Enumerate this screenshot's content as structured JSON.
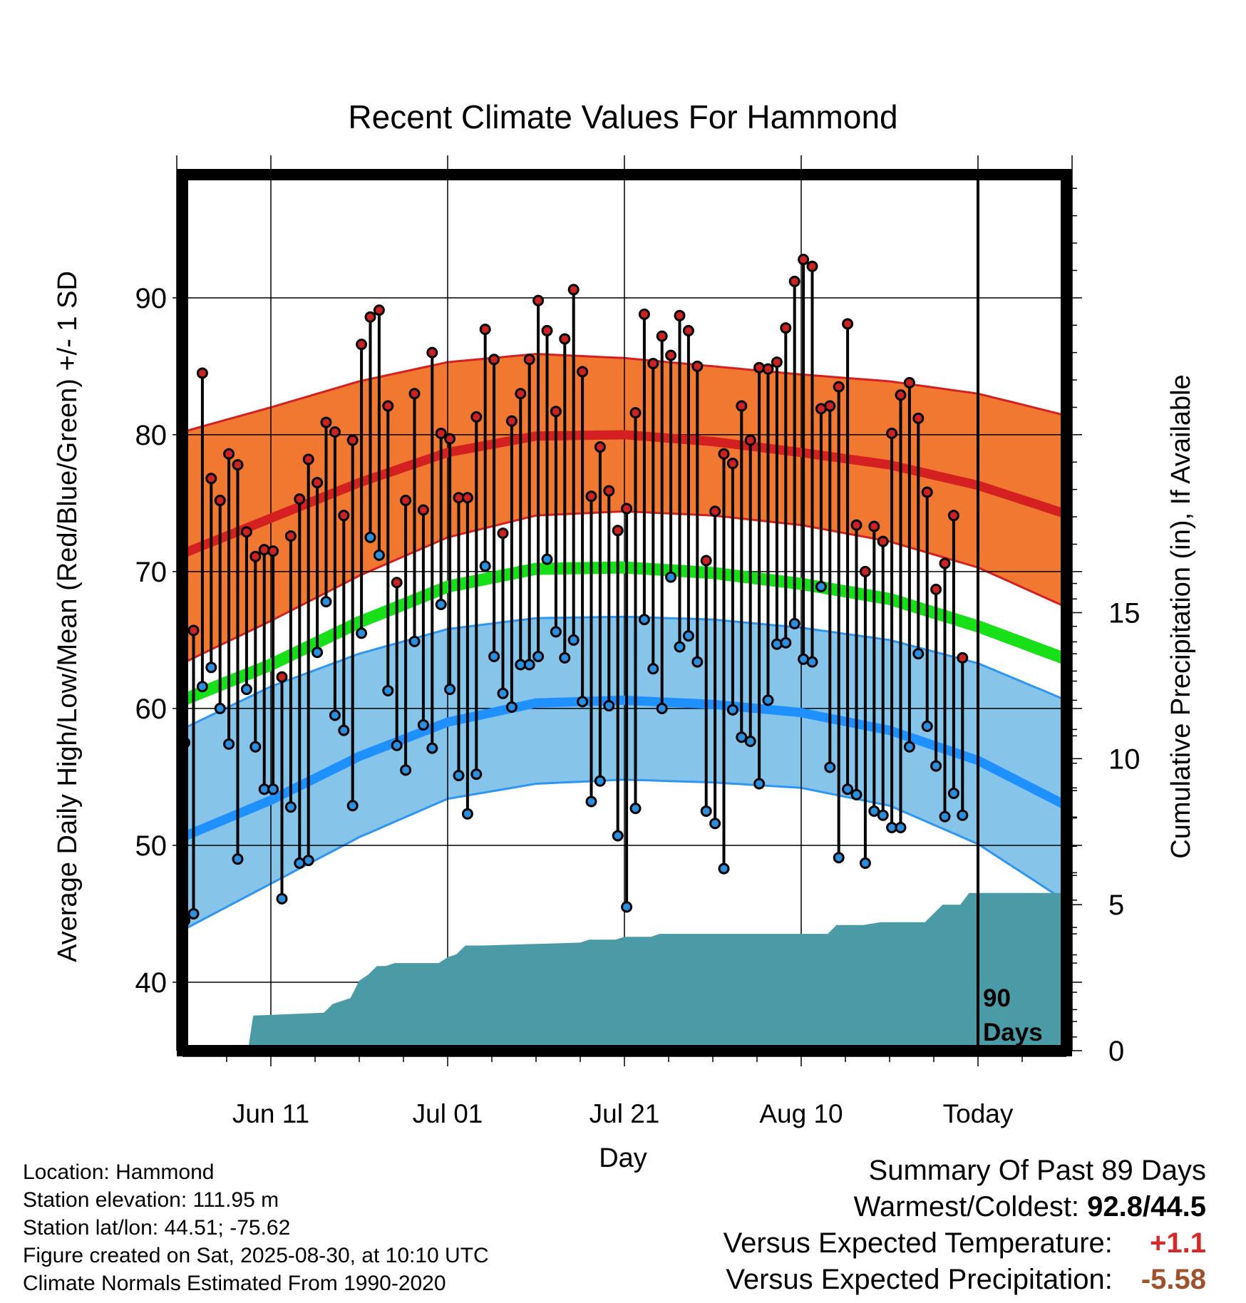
{
  "colors": {
    "high_band": "#F07830",
    "high_line": "#D42020",
    "low_band": "#86C4EA",
    "low_line": "#1E90FF",
    "low_edge": "#2E96F0",
    "mean_line": "#18E018",
    "precip": "#4A9BA6",
    "high_dot": "#CC2222",
    "low_dot": "#2B8FE0",
    "warm_value": "#D42A2A",
    "precip_value": "#A0522D"
  },
  "chart_data": {
    "type": "line",
    "title": "Recent Climate Values For Hammond",
    "xlabel": "Day",
    "ylabel": "Average Daily High/Low/Mean (Red/Blue/Green) +/- 1 SD",
    "y2label": "Cumulative Precipitation (in), If Available",
    "ylim": [
      35,
      99
    ],
    "y2lim": [
      0,
      30
    ],
    "y_ticks": [
      40,
      50,
      60,
      70,
      80,
      90
    ],
    "y2_ticks": [
      0,
      5,
      10,
      15
    ],
    "x_ticks": [
      {
        "day": 10,
        "label": "Jun 11"
      },
      {
        "day": 30,
        "label": "Jul 01"
      },
      {
        "day": 50,
        "label": "Jul 21"
      },
      {
        "day": 70,
        "label": "Aug 10"
      },
      {
        "day": 90,
        "label": "Today"
      }
    ],
    "x_range_days": [
      0,
      100
    ],
    "today_marker_label": "90 Days",
    "grid": true,
    "normals": {
      "days": [
        0,
        10,
        20,
        30,
        40,
        50,
        60,
        70,
        80,
        90,
        100
      ],
      "high_mean": [
        71.3,
        73.9,
        76.5,
        78.7,
        79.9,
        80.0,
        79.5,
        78.7,
        77.8,
        76.3,
        74.2
      ],
      "high_upper": [
        80.2,
        82.0,
        83.9,
        85.3,
        85.9,
        85.6,
        85.0,
        84.4,
        83.9,
        83.0,
        81.4
      ],
      "high_lower": [
        63.3,
        66.4,
        69.7,
        72.5,
        74.1,
        74.4,
        74.1,
        73.4,
        72.2,
        70.3,
        67.4
      ],
      "low_mean": [
        50.6,
        53.3,
        56.5,
        59.0,
        60.4,
        60.6,
        60.3,
        59.7,
        58.4,
        56.2,
        52.9
      ],
      "low_upper": [
        58.5,
        61.6,
        64.0,
        65.8,
        66.6,
        66.7,
        66.5,
        65.9,
        65.0,
        63.3,
        60.6
      ],
      "low_lower": [
        43.8,
        47.2,
        50.6,
        53.4,
        54.5,
        54.8,
        54.6,
        54.2,
        52.9,
        50.1,
        45.9
      ],
      "mean": [
        60.6,
        63.2,
        66.3,
        68.9,
        70.2,
        70.3,
        69.9,
        69.1,
        68.0,
        66.0,
        63.6
      ]
    },
    "series": [
      {
        "name": "High",
        "values": [
          57.5,
          65.7,
          84.5,
          76.8,
          75.2,
          78.6,
          77.8,
          72.9,
          71.1,
          71.6,
          71.5,
          62.3,
          72.6,
          75.3,
          78.2,
          76.5,
          80.9,
          80.2,
          74.1,
          79.6,
          86.6,
          88.6,
          89.1,
          82.1,
          69.2,
          75.2,
          83.0,
          74.5,
          86.0,
          80.1,
          79.7,
          75.4,
          75.4,
          81.3,
          87.7,
          85.5,
          72.8,
          81.0,
          83.0,
          85.5,
          89.8,
          87.6,
          81.7,
          87.0,
          90.6,
          84.6,
          75.5,
          79.1,
          75.9,
          73.0,
          74.6,
          81.6,
          88.8,
          85.2,
          87.2,
          85.8,
          88.7,
          87.6,
          85.0,
          70.8,
          74.4,
          78.6,
          77.9,
          82.1,
          79.6,
          84.9,
          84.8,
          85.3,
          87.8,
          91.2,
          92.8,
          92.3,
          81.9,
          82.1,
          83.5,
          88.1,
          73.4,
          70.0,
          73.3,
          72.2,
          80.1,
          82.9,
          83.8,
          81.2,
          75.8,
          68.7,
          70.6,
          74.1,
          63.7
        ]
      },
      {
        "name": "Low",
        "values": [
          44.5,
          45.0,
          61.6,
          63.0,
          60.0,
          57.4,
          49.0,
          61.4,
          57.2,
          54.1,
          54.1,
          46.1,
          52.8,
          48.7,
          48.9,
          64.1,
          67.8,
          59.5,
          58.4,
          52.9,
          65.5,
          72.5,
          71.2,
          61.3,
          57.3,
          55.5,
          64.9,
          58.8,
          57.1,
          67.6,
          61.4,
          55.1,
          52.3,
          55.2,
          70.4,
          63.8,
          61.1,
          60.1,
          63.2,
          63.2,
          63.8,
          70.9,
          65.6,
          63.7,
          65.0,
          60.5,
          53.2,
          54.7,
          60.2,
          50.7,
          45.5,
          52.7,
          66.5,
          62.9,
          60.0,
          69.6,
          64.5,
          65.3,
          63.4,
          52.5,
          51.6,
          48.3,
          59.9,
          57.9,
          57.6,
          54.5,
          60.6,
          64.7,
          64.8,
          66.2,
          63.6,
          63.4,
          68.9,
          55.7,
          49.1,
          54.1,
          53.7,
          48.7,
          52.5,
          52.2,
          51.3,
          51.3,
          57.2,
          64.0,
          58.7,
          55.8,
          52.1,
          53.8,
          52.2
        ]
      },
      {
        "name": "Cumulative Precipitation",
        "days": [
          0,
          7.4,
          8,
          16,
          17,
          19,
          20,
          21,
          22,
          23,
          24,
          29,
          30,
          31,
          32,
          33,
          34,
          45,
          46,
          47,
          48,
          49,
          50,
          52,
          53,
          54,
          55,
          73,
          74,
          77,
          79,
          84,
          85,
          86,
          87,
          88,
          89,
          90,
          100
        ],
        "values": [
          0,
          0,
          1.2,
          1.3,
          1.6,
          1.8,
          2.4,
          2.6,
          2.9,
          2.9,
          3.0,
          3.0,
          3.2,
          3.3,
          3.6,
          3.6,
          3.6,
          3.7,
          3.8,
          3.8,
          3.8,
          3.8,
          3.9,
          3.9,
          3.9,
          4.0,
          4.0,
          4.0,
          4.3,
          4.3,
          4.4,
          4.4,
          4.7,
          5.0,
          5.0,
          5.0,
          5.4,
          5.4,
          5.4
        ]
      }
    ]
  },
  "info": {
    "location": "Location: Hammond",
    "elevation": "Station elevation: 111.95 m",
    "latlon": "Station lat/lon: 44.51; -75.62",
    "created": "Figure created on Sat, 2025-08-30, at 10:10 UTC",
    "normals": "Climate Normals Estimated From 1990-2020"
  },
  "summary": {
    "title": "Summary Of Past 89 Days",
    "warm_cold_label": "Warmest/Coldest:",
    "warm_cold_value": "92.8/44.5",
    "temp_label": "Versus Expected Temperature:",
    "temp_value": "+1.1",
    "precip_label": "Versus Expected Precipitation:",
    "precip_value": "-5.58"
  }
}
